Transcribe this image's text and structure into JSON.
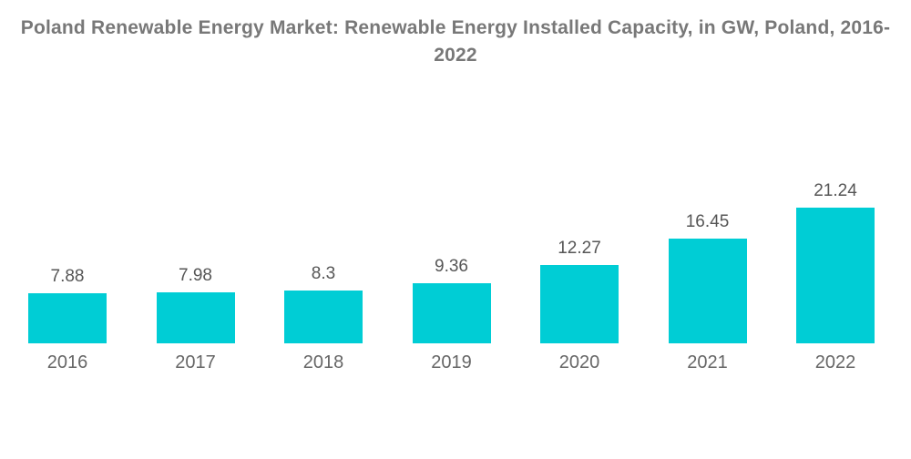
{
  "header": {
    "title": "Poland Renewable Energy Market: Renewable Energy Installed Capacity, in GW, Poland, 2016-2022"
  },
  "chart_data": {
    "type": "bar",
    "title": "Poland Renewable Energy Market: Renewable Energy Installed Capacity, in GW, Poland, 2016-2022",
    "categories": [
      "2016",
      "2017",
      "2018",
      "2019",
      "2020",
      "2021",
      "2022"
    ],
    "values": [
      7.88,
      7.98,
      8.3,
      9.36,
      12.27,
      16.45,
      21.24
    ],
    "value_labels": [
      "7.88",
      "7.98",
      "8.3",
      "9.36",
      "12.27",
      "16.45",
      "21.24"
    ],
    "xlabel": "",
    "ylabel": "",
    "ylim": [
      0,
      22
    ],
    "grid": false,
    "legend": false,
    "colors": {
      "bar": "#00CDD5",
      "title_text": "#787878",
      "value_label_text": "#565656",
      "year_label_text": "#666666",
      "background": "#ffffff"
    }
  }
}
